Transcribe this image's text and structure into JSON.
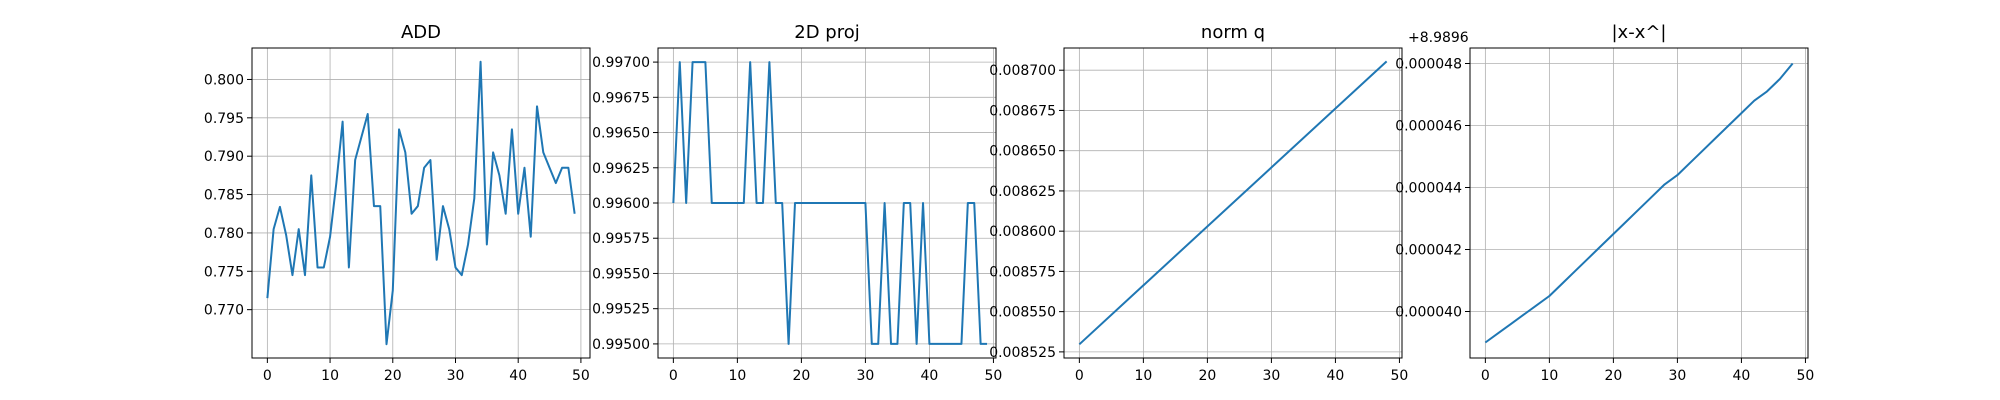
{
  "style": {
    "line_color": "#1f77b4",
    "grid": true
  },
  "chart_data": [
    {
      "type": "line",
      "title": "ADD",
      "xlim": [
        -2.45,
        51.45
      ],
      "ylim": [
        0.7637,
        0.8041
      ],
      "xticks": [
        0,
        10,
        20,
        30,
        40,
        50
      ],
      "xtick_labels": [
        "0",
        "10",
        "20",
        "30",
        "40",
        "50"
      ],
      "yticks": [
        0.77,
        0.775,
        0.78,
        0.785,
        0.79,
        0.795,
        0.8
      ],
      "ytick_labels": [
        "0.770",
        "0.775",
        "0.780",
        "0.785",
        "0.790",
        "0.795",
        "0.800"
      ],
      "offset_label": "",
      "x": [
        0,
        1,
        2,
        3,
        4,
        5,
        6,
        7,
        8,
        9,
        10,
        11,
        12,
        13,
        14,
        15,
        16,
        17,
        18,
        19,
        20,
        21,
        22,
        23,
        24,
        25,
        26,
        27,
        28,
        29,
        30,
        31,
        32,
        33,
        34,
        35,
        36,
        37,
        38,
        39,
        40,
        41,
        42,
        43,
        44,
        45,
        46,
        47,
        48,
        49
      ],
      "y": [
        0.7715,
        0.7805,
        0.7834,
        0.7797,
        0.7745,
        0.7805,
        0.7745,
        0.7875,
        0.7755,
        0.7755,
        0.7795,
        0.7865,
        0.7945,
        0.7755,
        0.7895,
        0.7925,
        0.7955,
        0.7835,
        0.7835,
        0.7655,
        0.7725,
        0.7935,
        0.7905,
        0.7825,
        0.7835,
        0.7885,
        0.7895,
        0.7765,
        0.7835,
        0.7805,
        0.7755,
        0.7745,
        0.7785,
        0.7845,
        0.8023,
        0.7785,
        0.7905,
        0.7875,
        0.7825,
        0.7935,
        0.7825,
        0.7885,
        0.7795,
        0.7965,
        0.7905,
        0.7885,
        0.7865,
        0.7885,
        0.7885,
        0.7825
      ]
    },
    {
      "type": "line",
      "title": "2D proj",
      "xlim": [
        -2.4,
        50.4
      ],
      "ylim": [
        0.9949,
        0.9971
      ],
      "xticks": [
        0,
        10,
        20,
        30,
        40,
        50
      ],
      "xtick_labels": [
        "0",
        "10",
        "20",
        "30",
        "40",
        "50"
      ],
      "yticks": [
        0.995,
        0.99525,
        0.9955,
        0.99575,
        0.996,
        0.99625,
        0.9965,
        0.99675,
        0.997
      ],
      "ytick_labels": [
        "0.99500",
        "0.99525",
        "0.99550",
        "0.99575",
        "0.99600",
        "0.99625",
        "0.99650",
        "0.99675",
        "0.99700"
      ],
      "offset_label": "",
      "x": [
        0,
        1,
        2,
        3,
        4,
        5,
        6,
        7,
        8,
        9,
        10,
        11,
        12,
        13,
        14,
        15,
        16,
        17,
        18,
        19,
        20,
        21,
        22,
        23,
        24,
        25,
        26,
        27,
        28,
        29,
        30,
        31,
        32,
        33,
        34,
        35,
        36,
        37,
        38,
        39,
        40,
        41,
        42,
        43,
        44,
        45,
        46,
        47,
        48,
        49
      ],
      "y": [
        0.996,
        0.997,
        0.996,
        0.997,
        0.997,
        0.997,
        0.996,
        0.996,
        0.996,
        0.996,
        0.996,
        0.996,
        0.997,
        0.996,
        0.996,
        0.997,
        0.996,
        0.996,
        0.995,
        0.996,
        0.996,
        0.996,
        0.996,
        0.996,
        0.996,
        0.996,
        0.996,
        0.996,
        0.996,
        0.996,
        0.996,
        0.995,
        0.995,
        0.996,
        0.995,
        0.995,
        0.996,
        0.996,
        0.995,
        0.996,
        0.995,
        0.995,
        0.995,
        0.995,
        0.995,
        0.995,
        0.996,
        0.996,
        0.995,
        0.995
      ]
    },
    {
      "type": "line",
      "title": "norm q",
      "xlim": [
        -2.4,
        50.4
      ],
      "ylim": [
        0.0085212,
        0.0087138
      ],
      "xticks": [
        0,
        10,
        20,
        30,
        40,
        50
      ],
      "xtick_labels": [
        "0",
        "10",
        "20",
        "30",
        "40",
        "50"
      ],
      "yticks": [
        0.008525,
        0.00855,
        0.008575,
        0.0086,
        0.008625,
        0.00865,
        0.008675,
        0.0087
      ],
      "ytick_labels": [
        "0.008525",
        "0.008550",
        "0.008575",
        "0.008600",
        "0.008625",
        "0.008650",
        "0.008675",
        "0.008700"
      ],
      "offset_label": "",
      "x": [
        0,
        48
      ],
      "y": [
        0.0085297,
        0.0087055
      ]
    },
    {
      "type": "line",
      "title": "|x-x^|",
      "xlim": [
        -2.4,
        50.4
      ],
      "ylim": [
        3.85e-05,
        4.85e-05
      ],
      "xticks": [
        0,
        10,
        20,
        30,
        40,
        50
      ],
      "xtick_labels": [
        "0",
        "10",
        "20",
        "30",
        "40",
        "50"
      ],
      "yticks": [
        4e-05,
        4.2e-05,
        4.4e-05,
        4.6e-05,
        4.8e-05
      ],
      "ytick_labels": [
        "0.000040",
        "0.000042",
        "0.000044",
        "0.000046",
        "0.000048"
      ],
      "offset_label": "+8.9896",
      "x": [
        0,
        2,
        4,
        6,
        8,
        10,
        12,
        14,
        16,
        18,
        20,
        22,
        24,
        26,
        28,
        30,
        32,
        34,
        36,
        38,
        40,
        42,
        44,
        46,
        48
      ],
      "y": [
        3.9e-05,
        3.93e-05,
        3.96e-05,
        3.99e-05,
        4.02e-05,
        4.05e-05,
        4.09e-05,
        4.13e-05,
        4.17e-05,
        4.21e-05,
        4.25e-05,
        4.29e-05,
        4.33e-05,
        4.37e-05,
        4.41e-05,
        4.44e-05,
        4.48e-05,
        4.52e-05,
        4.56e-05,
        4.6e-05,
        4.64e-05,
        4.68e-05,
        4.71e-05,
        4.75e-05,
        4.8e-05
      ]
    }
  ]
}
